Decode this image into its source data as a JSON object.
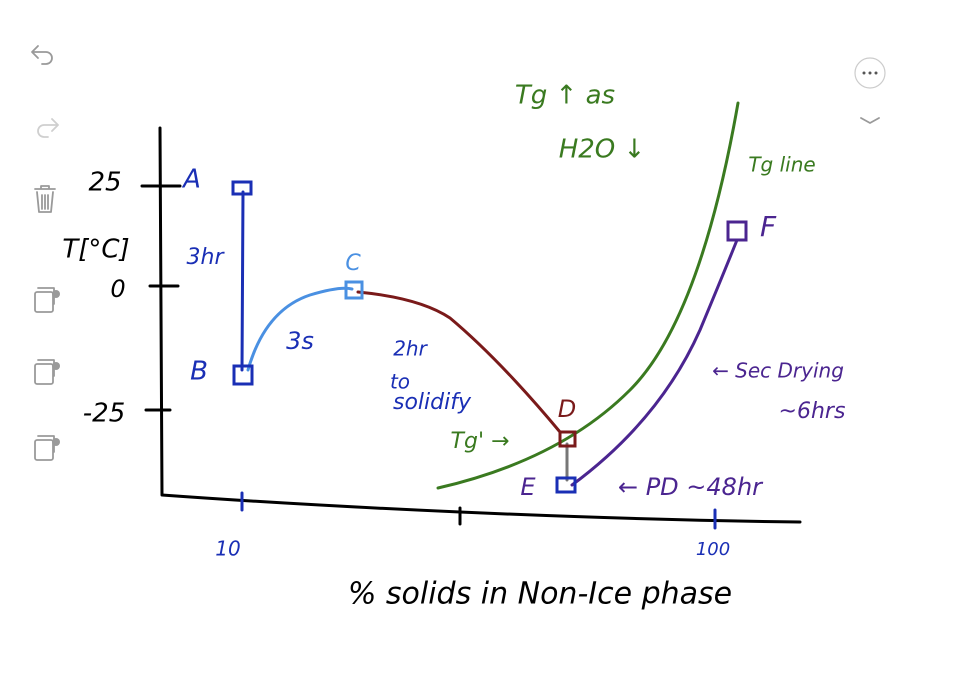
{
  "sketch": {
    "y_axis": {
      "label": "T[°C]",
      "ticks": [
        "25",
        "0",
        "-25"
      ]
    },
    "x_axis": {
      "label": "% solids in Non-Ice phase",
      "ticks": [
        "10",
        "100"
      ]
    },
    "points": [
      "A",
      "B",
      "C",
      "D",
      "E",
      "F"
    ],
    "annotations": {
      "ab_time": "3hr",
      "bc_time": "3s",
      "cd_note": [
        "2hr",
        "to",
        "solidify"
      ],
      "tg_prime": "Tg' →",
      "pd": "← PD ~48hr",
      "sec_drying": [
        "← Sec Drying",
        "~6hrs"
      ],
      "tg_line": "Tg line",
      "tg_trend": [
        "Tg ↑ as",
        "H2O ↓"
      ]
    }
  }
}
